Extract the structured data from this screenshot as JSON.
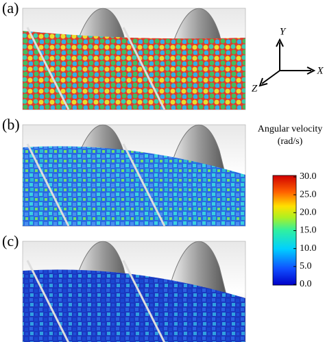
{
  "panels": [
    {
      "label": "(a)"
    },
    {
      "label": "(b)"
    },
    {
      "label": "(c)"
    }
  ],
  "axes": {
    "y": "Y",
    "x": "X",
    "z": "Z"
  },
  "colorbar": {
    "title": "Angular velocity",
    "unit": "(rad/s)",
    "lim": [
      0,
      30
    ],
    "ticks": [
      {
        "value": 30,
        "label": "30.0"
      },
      {
        "value": 25,
        "label": "25.0"
      },
      {
        "value": 20,
        "label": "20.0"
      },
      {
        "value": 15,
        "label": "15.0"
      },
      {
        "value": 10,
        "label": "10.0"
      },
      {
        "value": 5,
        "label": "5.0"
      },
      {
        "value": 0,
        "label": "0.0"
      }
    ]
  }
}
